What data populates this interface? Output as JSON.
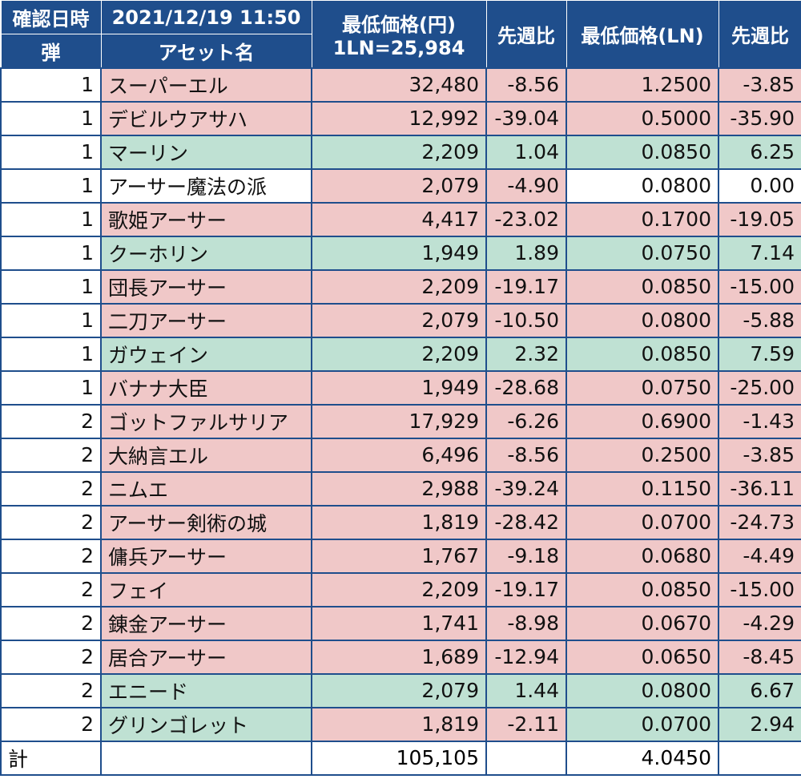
{
  "header": {
    "confirm_label": "確認日時",
    "datetime": "2021/12/19 11:50",
    "dan_label": "弾",
    "asset_label": "アセット名",
    "min_price_yen_label": "最低価格(円)",
    "rate_label": "1LN=25,984",
    "prev_week_label_1": "先週比",
    "min_price_ln_label": "最低価格(LN)",
    "prev_week_label_2": "先週比"
  },
  "colors": {
    "header_bg": "#1f4e8c",
    "red": "#f0c8c8",
    "green": "#bfe1d3"
  },
  "rows": [
    {
      "dan": "1",
      "name": "スーパーエル",
      "yen": "32,480",
      "yen_wk": "-8.56",
      "ln": "1.2500",
      "ln_wk": "-3.85",
      "c_name": "red",
      "c_yen": "red",
      "c_ln": "red"
    },
    {
      "dan": "1",
      "name": "デビルウアサハ",
      "yen": "12,992",
      "yen_wk": "-39.04",
      "ln": "0.5000",
      "ln_wk": "-35.90",
      "c_name": "red",
      "c_yen": "red",
      "c_ln": "red"
    },
    {
      "dan": "1",
      "name": "マーリン",
      "yen": "2,209",
      "yen_wk": "1.04",
      "ln": "0.0850",
      "ln_wk": "6.25",
      "c_name": "green",
      "c_yen": "green",
      "c_ln": "green"
    },
    {
      "dan": "1",
      "name": "アーサー魔法の派",
      "yen": "2,079",
      "yen_wk": "-4.90",
      "ln": "0.0800",
      "ln_wk": "0.00",
      "c_name": "white",
      "c_yen": "red",
      "c_ln": "white"
    },
    {
      "dan": "1",
      "name": "歌姫アーサー",
      "yen": "4,417",
      "yen_wk": "-23.02",
      "ln": "0.1700",
      "ln_wk": "-19.05",
      "c_name": "red",
      "c_yen": "red",
      "c_ln": "red"
    },
    {
      "dan": "1",
      "name": "クーホリン",
      "yen": "1,949",
      "yen_wk": "1.89",
      "ln": "0.0750",
      "ln_wk": "7.14",
      "c_name": "green",
      "c_yen": "green",
      "c_ln": "green"
    },
    {
      "dan": "1",
      "name": "団長アーサー",
      "yen": "2,209",
      "yen_wk": "-19.17",
      "ln": "0.0850",
      "ln_wk": "-15.00",
      "c_name": "red",
      "c_yen": "red",
      "c_ln": "red"
    },
    {
      "dan": "1",
      "name": "二刀アーサー",
      "yen": "2,079",
      "yen_wk": "-10.50",
      "ln": "0.0800",
      "ln_wk": "-5.88",
      "c_name": "red",
      "c_yen": "red",
      "c_ln": "red"
    },
    {
      "dan": "1",
      "name": "ガウェイン",
      "yen": "2,209",
      "yen_wk": "2.32",
      "ln": "0.0850",
      "ln_wk": "7.59",
      "c_name": "green",
      "c_yen": "green",
      "c_ln": "green"
    },
    {
      "dan": "1",
      "name": "バナナ大臣",
      "yen": "1,949",
      "yen_wk": "-28.68",
      "ln": "0.0750",
      "ln_wk": "-25.00",
      "c_name": "red",
      "c_yen": "red",
      "c_ln": "red"
    },
    {
      "dan": "2",
      "name": "ゴットファルサリア",
      "yen": "17,929",
      "yen_wk": "-6.26",
      "ln": "0.6900",
      "ln_wk": "-1.43",
      "c_name": "red",
      "c_yen": "red",
      "c_ln": "red"
    },
    {
      "dan": "2",
      "name": "大納言エル",
      "yen": "6,496",
      "yen_wk": "-8.56",
      "ln": "0.2500",
      "ln_wk": "-3.85",
      "c_name": "red",
      "c_yen": "red",
      "c_ln": "red"
    },
    {
      "dan": "2",
      "name": "ニムエ",
      "yen": "2,988",
      "yen_wk": "-39.24",
      "ln": "0.1150",
      "ln_wk": "-36.11",
      "c_name": "red",
      "c_yen": "red",
      "c_ln": "red"
    },
    {
      "dan": "2",
      "name": "アーサー剣術の城",
      "yen": "1,819",
      "yen_wk": "-28.42",
      "ln": "0.0700",
      "ln_wk": "-24.73",
      "c_name": "red",
      "c_yen": "red",
      "c_ln": "red"
    },
    {
      "dan": "2",
      "name": "傭兵アーサー",
      "yen": "1,767",
      "yen_wk": "-9.18",
      "ln": "0.0680",
      "ln_wk": "-4.49",
      "c_name": "red",
      "c_yen": "red",
      "c_ln": "red"
    },
    {
      "dan": "2",
      "name": "フェイ",
      "yen": "2,209",
      "yen_wk": "-19.17",
      "ln": "0.0850",
      "ln_wk": "-15.00",
      "c_name": "red",
      "c_yen": "red",
      "c_ln": "red"
    },
    {
      "dan": "2",
      "name": "錬金アーサー",
      "yen": "1,741",
      "yen_wk": "-8.98",
      "ln": "0.0670",
      "ln_wk": "-4.29",
      "c_name": "red",
      "c_yen": "red",
      "c_ln": "red"
    },
    {
      "dan": "2",
      "name": "居合アーサー",
      "yen": "1,689",
      "yen_wk": "-12.94",
      "ln": "0.0650",
      "ln_wk": "-8.45",
      "c_name": "red",
      "c_yen": "red",
      "c_ln": "red"
    },
    {
      "dan": "2",
      "name": "エニード",
      "yen": "2,079",
      "yen_wk": "1.44",
      "ln": "0.0800",
      "ln_wk": "6.67",
      "c_name": "green",
      "c_yen": "green",
      "c_ln": "green"
    },
    {
      "dan": "2",
      "name": "グリンゴレット",
      "yen": "1,819",
      "yen_wk": "-2.11",
      "ln": "0.0700",
      "ln_wk": "2.94",
      "c_name": "green",
      "c_yen": "red",
      "c_ln": "green"
    }
  ],
  "total": {
    "label": "計",
    "yen": "105,105",
    "ln": "4.0450"
  }
}
